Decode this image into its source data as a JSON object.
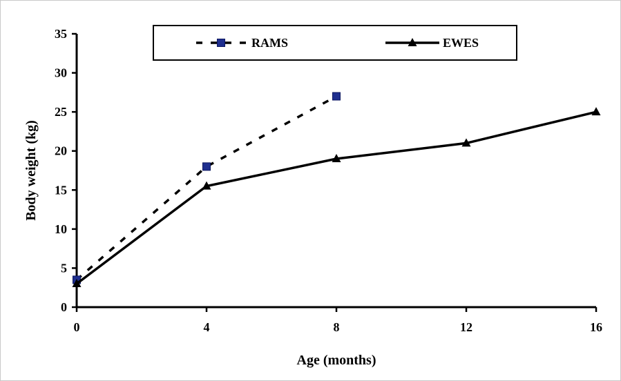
{
  "chart_data": {
    "type": "line",
    "title": "",
    "xlabel": "Age (months)",
    "ylabel": "Body weight (kg)",
    "xlim": [
      0,
      16
    ],
    "ylim": [
      0,
      35
    ],
    "xticks": [
      0,
      4,
      8,
      12,
      16
    ],
    "yticks": [
      0,
      5,
      10,
      15,
      20,
      25,
      30,
      35
    ],
    "grid": false,
    "legend_position": "top",
    "series": [
      {
        "name": "RAMS",
        "x": [
          0,
          4,
          8
        ],
        "values": [
          3.5,
          18,
          27
        ],
        "style": "dashed",
        "marker": "square",
        "marker_color": "#1f2f8f"
      },
      {
        "name": "EWES",
        "x": [
          0,
          4,
          8,
          12,
          16
        ],
        "values": [
          3,
          15.5,
          19,
          21,
          25
        ],
        "style": "solid",
        "marker": "triangle",
        "marker_color": "#000000"
      }
    ]
  }
}
